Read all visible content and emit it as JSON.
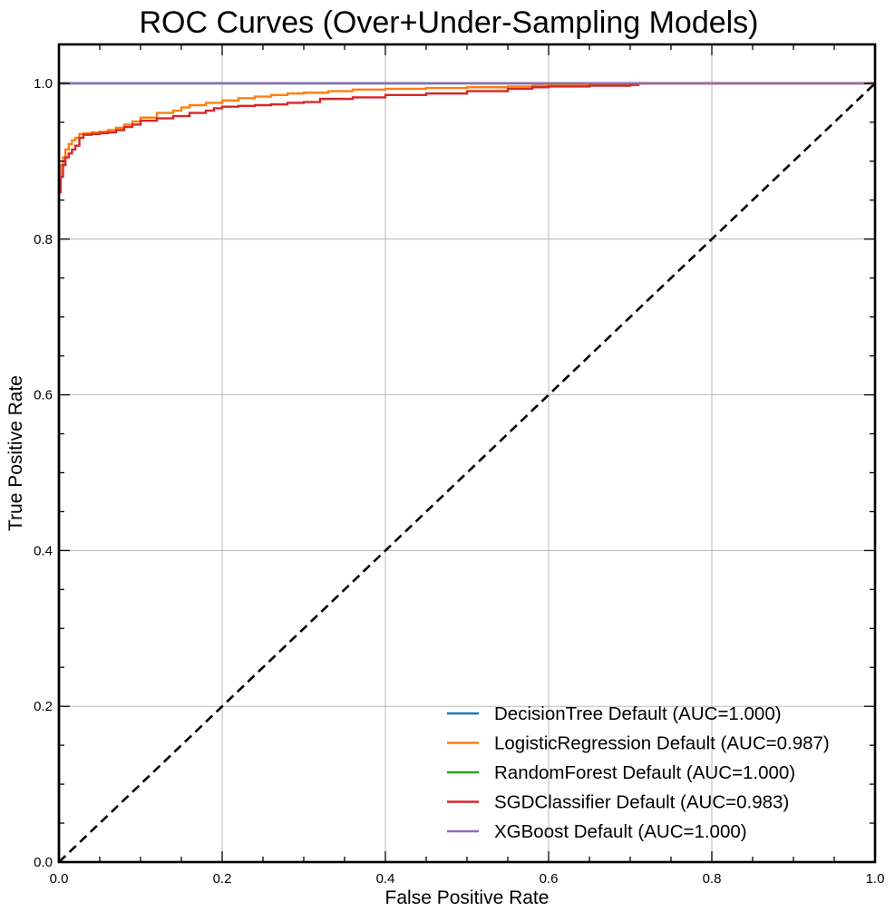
{
  "chart_data": {
    "type": "line",
    "title": "ROC Curves (Over+Under-Sampling Models)",
    "xlabel": "False Positive Rate",
    "ylabel": "True Positive Rate",
    "xlim": [
      0,
      1
    ],
    "ylim": [
      0,
      1.05
    ],
    "xticks": [
      0.0,
      0.2,
      0.4,
      0.6,
      0.8,
      1.0
    ],
    "xtick_labels": [
      "0.0",
      "0.2",
      "0.4",
      "0.6",
      "0.8",
      "1.0"
    ],
    "yticks": [
      0.0,
      0.2,
      0.4,
      0.6,
      0.8,
      1.0
    ],
    "ytick_labels": [
      "0.0",
      "0.2",
      "0.4",
      "0.6",
      "0.8",
      "1.0"
    ],
    "grid": true,
    "legend_position": "lower-right",
    "series": [
      {
        "name": "DecisionTree Default (AUC=1.000)",
        "color": "#1f77b4",
        "x": [
          0.0,
          0.0,
          1.0
        ],
        "y": [
          0.0,
          1.0,
          1.0
        ]
      },
      {
        "name": "LogisticRegression Default (AUC=0.987)",
        "color": "#ff7f0e",
        "x": [
          0.0,
          0.002,
          0.005,
          0.008,
          0.012,
          0.016,
          0.02,
          0.025,
          0.03,
          0.04,
          0.05,
          0.06,
          0.07,
          0.08,
          0.09,
          0.1,
          0.12,
          0.14,
          0.15,
          0.16,
          0.18,
          0.2,
          0.22,
          0.24,
          0.26,
          0.28,
          0.3,
          0.33,
          0.36,
          0.4,
          0.45,
          0.5,
          0.55,
          0.58,
          0.6,
          0.65,
          0.7,
          1.0
        ],
        "y": [
          0.875,
          0.895,
          0.905,
          0.915,
          0.922,
          0.927,
          0.93,
          0.935,
          0.936,
          0.937,
          0.938,
          0.94,
          0.943,
          0.947,
          0.951,
          0.956,
          0.962,
          0.965,
          0.969,
          0.972,
          0.975,
          0.978,
          0.981,
          0.983,
          0.985,
          0.987,
          0.988,
          0.99,
          0.992,
          0.993,
          0.994,
          0.995,
          0.996,
          0.997,
          0.998,
          0.999,
          1.0,
          1.0
        ]
      },
      {
        "name": "RandomForest Default (AUC=1.000)",
        "color": "#2ca02c",
        "x": [
          0.0,
          0.0,
          1.0
        ],
        "y": [
          0.0,
          1.0,
          1.0
        ]
      },
      {
        "name": "SGDClassifier Default (AUC=0.983)",
        "color": "#d62728",
        "x": [
          0.0,
          0.002,
          0.005,
          0.008,
          0.012,
          0.016,
          0.02,
          0.025,
          0.03,
          0.04,
          0.05,
          0.06,
          0.07,
          0.08,
          0.09,
          0.1,
          0.12,
          0.14,
          0.16,
          0.18,
          0.19,
          0.2,
          0.22,
          0.24,
          0.26,
          0.28,
          0.3,
          0.32,
          0.36,
          0.4,
          0.45,
          0.5,
          0.55,
          0.58,
          0.6,
          0.65,
          0.7,
          0.71,
          1.0
        ],
        "y": [
          0.86,
          0.88,
          0.895,
          0.905,
          0.91,
          0.915,
          0.92,
          0.93,
          0.934,
          0.935,
          0.936,
          0.937,
          0.94,
          0.944,
          0.947,
          0.952,
          0.955,
          0.958,
          0.962,
          0.965,
          0.968,
          0.97,
          0.971,
          0.972,
          0.973,
          0.975,
          0.976,
          0.98,
          0.982,
          0.985,
          0.987,
          0.99,
          0.993,
          0.995,
          0.996,
          0.997,
          0.998,
          1.0,
          1.0
        ]
      },
      {
        "name": "XGBoost Default (AUC=1.000)",
        "color": "#9467bd",
        "x": [
          0.0,
          0.0,
          1.0
        ],
        "y": [
          0.0,
          1.0,
          1.0
        ]
      }
    ],
    "reference_line": {
      "x": [
        0.0,
        1.0
      ],
      "y": [
        0.0,
        1.0
      ],
      "color": "#000000",
      "style": "dashed"
    }
  }
}
